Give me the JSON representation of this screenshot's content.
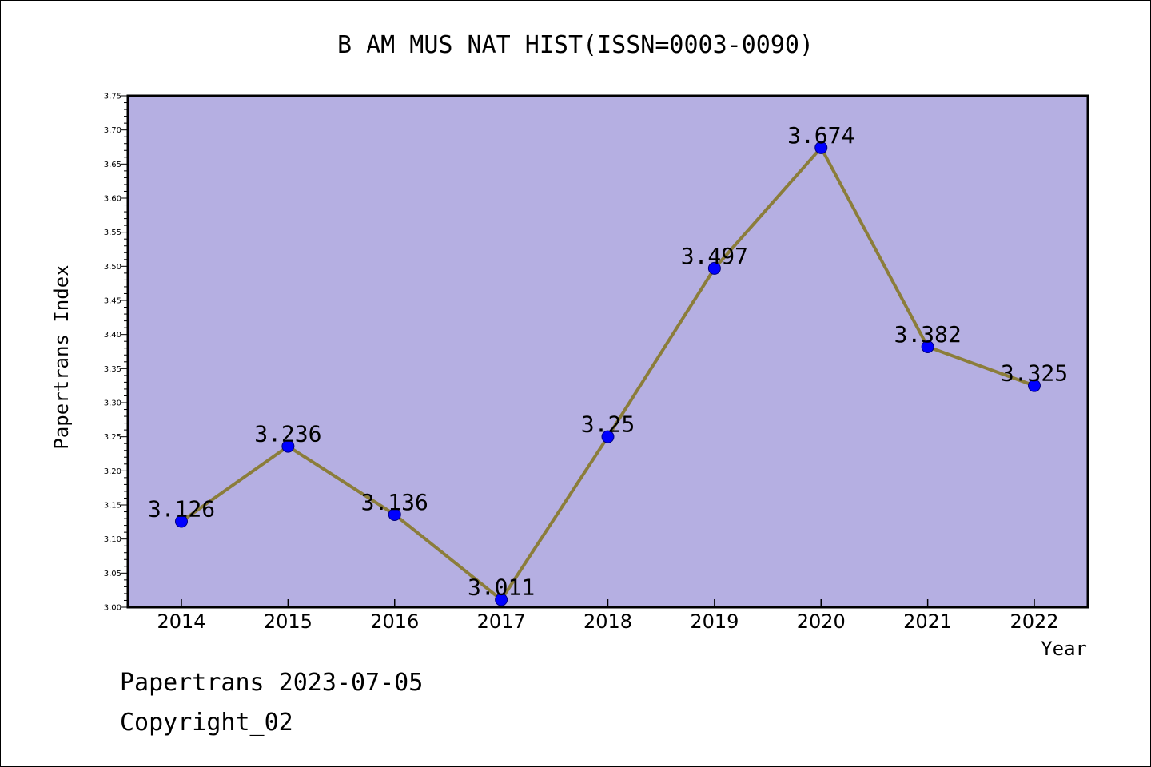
{
  "chart_data": {
    "type": "line",
    "title": "B AM MUS NAT HIST(ISSN=0003-0090)",
    "xlabel": "Year",
    "ylabel": "Papertrans Index",
    "categories": [
      "2014",
      "2015",
      "2016",
      "2017",
      "2018",
      "2019",
      "2020",
      "2021",
      "2022"
    ],
    "series": [
      {
        "values": [
          3.126,
          3.236,
          3.136,
          3.011,
          3.25,
          3.497,
          3.674,
          3.382,
          3.325
        ],
        "labels": [
          "3.126",
          "3.236",
          "3.136",
          "3.011",
          "3.25",
          "3.497",
          "3.674",
          "3.382",
          "3.325"
        ]
      }
    ],
    "ylim": [
      3.0,
      3.75
    ],
    "yticks": [
      "3.00",
      "3.05",
      "3.10",
      "3.15",
      "3.20",
      "3.25",
      "3.30",
      "3.35",
      "3.40",
      "3.45",
      "3.50",
      "3.55",
      "3.60",
      "3.65",
      "3.70",
      "3.75"
    ],
    "grid": false,
    "colors": {
      "plot_background": "#b5afe2",
      "line": "#8b7d3a",
      "marker_fill": "#0000ff",
      "marker_edge": "#000080",
      "axis": "#000000"
    }
  },
  "footer": {
    "line1": "Papertrans 2023-07-05",
    "line2": "Copyright_02"
  }
}
